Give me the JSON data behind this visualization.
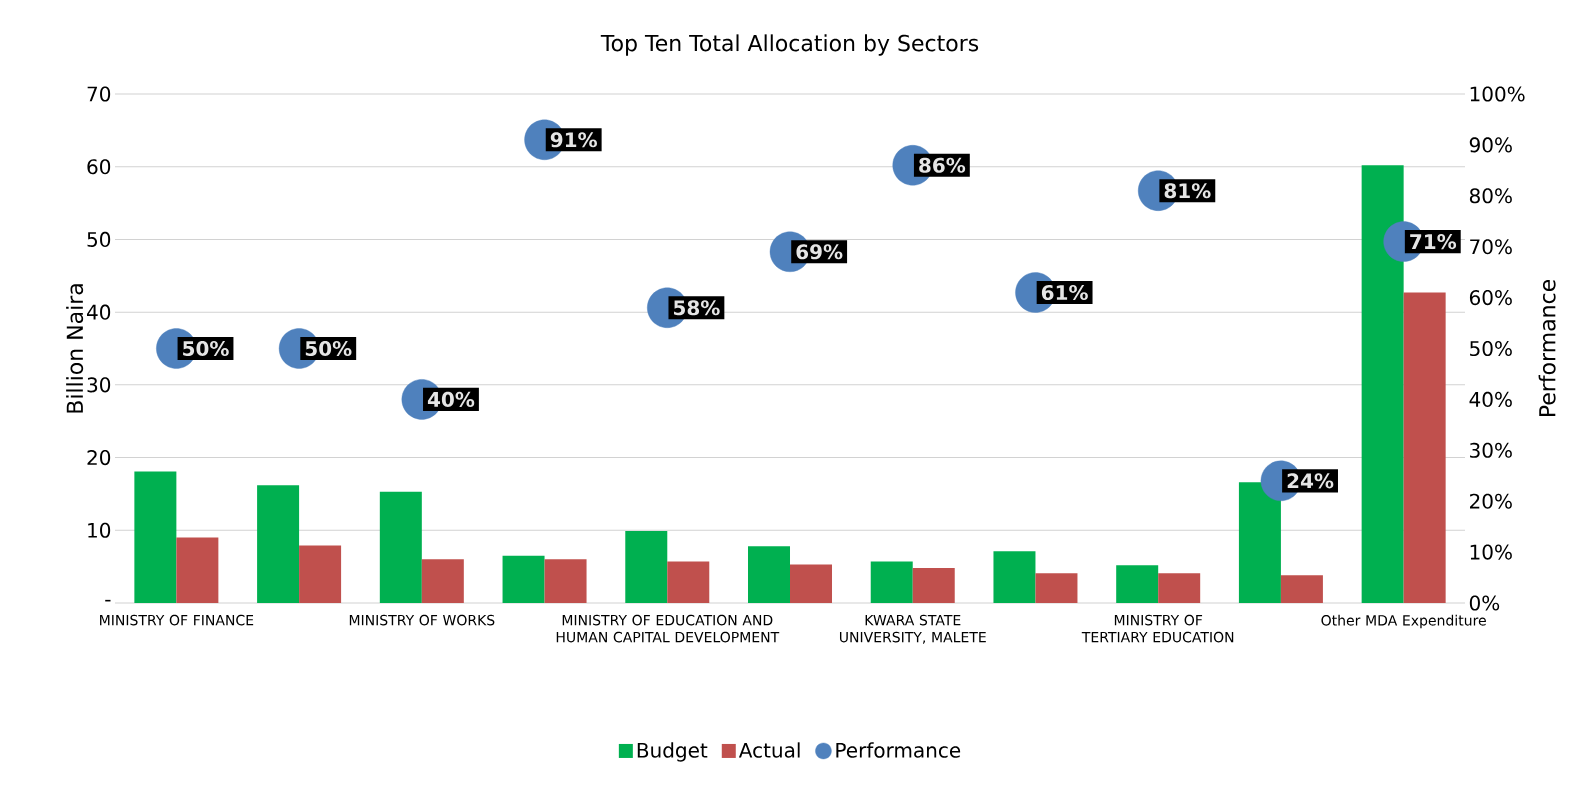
{
  "chart_data": {
    "type": "bar",
    "title": "Top Ten Total Allocation by Sectors",
    "ylabel": "Billion Naira",
    "y2label": "Performance",
    "categories": [
      "MINISTRY OF FINANCE",
      null,
      "MINISTRY OF WORKS",
      null,
      "MINISTRY OF EDUCATION AND HUMAN CAPITAL DEVELOPMENT",
      null,
      "KWARA STATE UNIVERSITY, MALETE",
      null,
      "MINISTRY OF TERTIARY EDUCATION",
      null,
      "Other MDA Expenditure"
    ],
    "series": [
      {
        "name": "Budget",
        "type": "bar",
        "color": "#00b050",
        "values": [
          18.1,
          16.2,
          15.3,
          6.5,
          9.9,
          7.8,
          5.7,
          7.1,
          5.2,
          16.6,
          60.2
        ]
      },
      {
        "name": "Actual",
        "type": "bar",
        "color": "#c0504d",
        "values": [
          9.0,
          7.9,
          6.0,
          6.0,
          5.7,
          5.3,
          4.8,
          4.1,
          4.1,
          3.8,
          42.7
        ]
      },
      {
        "name": "Performance",
        "type": "scatter",
        "axis": "y2",
        "color": "#4f81bd",
        "values": [
          50,
          50,
          40,
          91,
          58,
          69,
          86,
          61,
          81,
          24,
          71
        ],
        "value_labels": [
          "50%",
          "50%",
          "40%",
          "91%",
          "58%",
          "69%",
          "86%",
          "61%",
          "81%",
          "24%",
          "71%"
        ]
      }
    ],
    "ylim": [
      0,
      70
    ],
    "yticks": [
      {
        "value": 0,
        "label": "-"
      },
      10,
      20,
      30,
      40,
      50,
      60,
      70
    ],
    "y2lim": [
      0,
      100
    ],
    "y2ticks": [
      {
        "value": 0,
        "label": "0%"
      },
      {
        "value": 10,
        "label": "10%"
      },
      {
        "value": 20,
        "label": "20%"
      },
      {
        "value": 30,
        "label": "30%"
      },
      {
        "value": 40,
        "label": "40%"
      },
      {
        "value": 50,
        "label": "50%"
      },
      {
        "value": 60,
        "label": "60%"
      },
      {
        "value": 70,
        "label": "70%"
      },
      {
        "value": 80,
        "label": "80%"
      },
      {
        "value": 90,
        "label": "90%"
      },
      {
        "value": 100,
        "label": "100%"
      }
    ],
    "grid": "y",
    "legend": "bottom",
    "marker": "circle"
  }
}
